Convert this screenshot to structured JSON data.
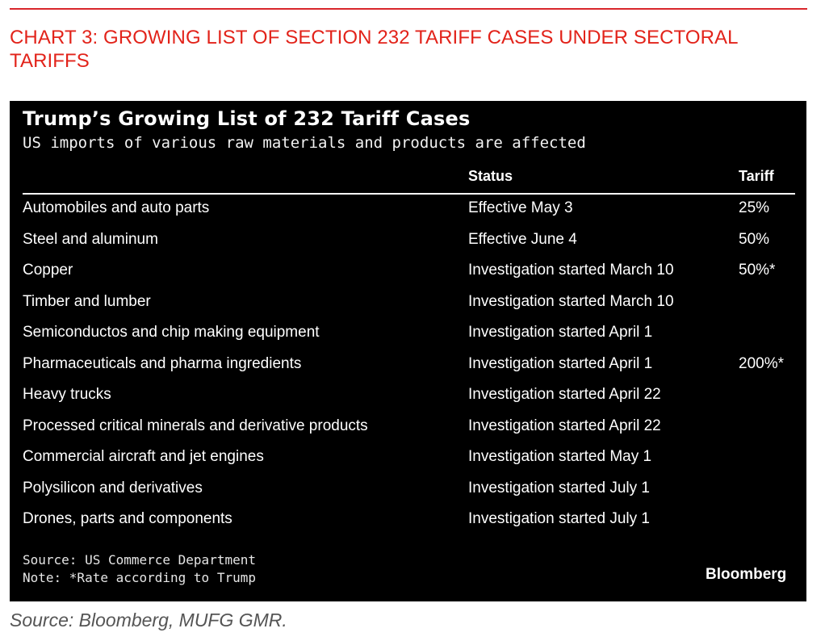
{
  "caption": "CHART 3: GROWING LIST OF SECTION 232 TARIFF CASES UNDER SECTORAL TARIFFS",
  "outer_source": "Source: Bloomberg, MUFG GMR.",
  "colors": {
    "caption_red": "#e2231a",
    "panel_bg": "#000000",
    "panel_text": "#ffffff"
  },
  "chart_data": {
    "type": "table",
    "title": "Trump’s Growing List of 232 Tariff Cases",
    "subtitle": "US imports of various raw materials and products are affected",
    "columns": [
      "",
      "Status",
      "Tariff"
    ],
    "rows": [
      {
        "item": "Automobiles and auto parts",
        "status": "Effective May 3",
        "tariff": "25%"
      },
      {
        "item": "Steel and aluminum",
        "status": "Effective June 4",
        "tariff": "50%"
      },
      {
        "item": "Copper",
        "status": "Investigation started March 10",
        "tariff": "50%*"
      },
      {
        "item": "Timber and lumber",
        "status": "Investigation started March 10",
        "tariff": ""
      },
      {
        "item": "Semiconductos and chip making equipment",
        "status": "Investigation started April 1",
        "tariff": ""
      },
      {
        "item": "Pharmaceuticals and pharma ingredients",
        "status": "Investigation started April 1",
        "tariff": "200%*"
      },
      {
        "item": "Heavy trucks",
        "status": "Investigation started April 22",
        "tariff": ""
      },
      {
        "item": "Processed critical minerals and derivative products",
        "status": "Investigation started April 22",
        "tariff": ""
      },
      {
        "item": "Commercial aircraft and jet engines",
        "status": "Investigation started May 1",
        "tariff": ""
      },
      {
        "item": "Polysilicon and derivatives",
        "status": "Investigation started July 1",
        "tariff": ""
      },
      {
        "item": "Drones, parts and components",
        "status": "Investigation started July 1",
        "tariff": ""
      }
    ],
    "source": "Source: US Commerce Department",
    "note": "Note: *Rate according to Trump",
    "brand": "Bloomberg"
  }
}
